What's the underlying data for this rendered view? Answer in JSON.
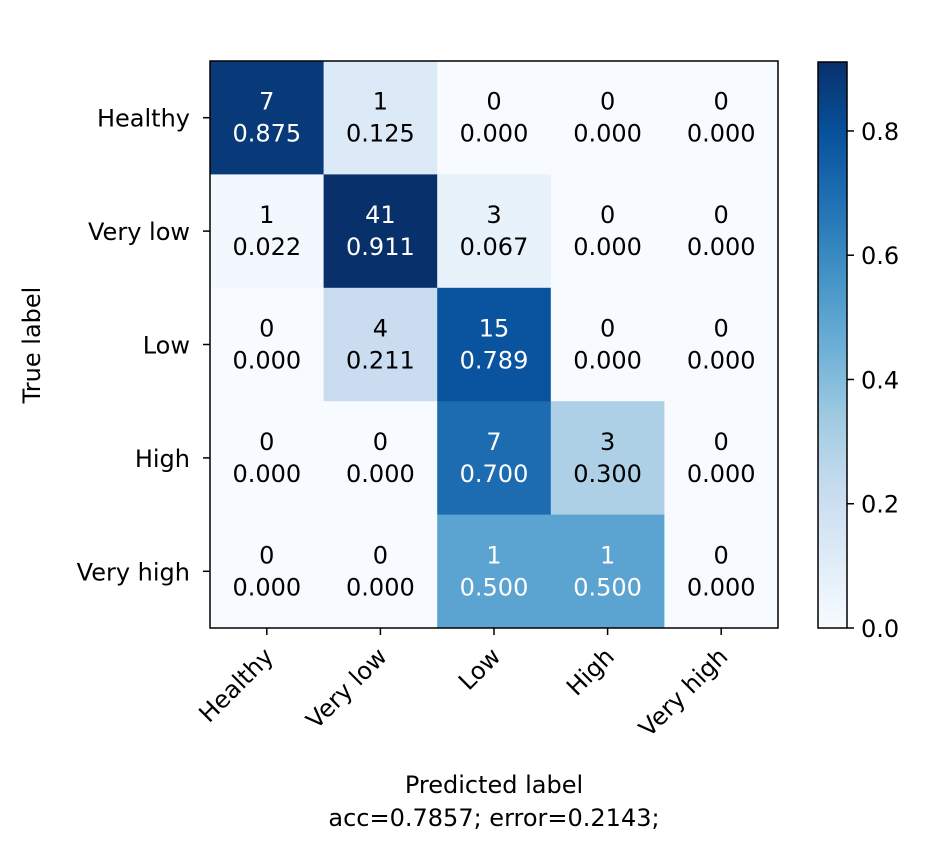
{
  "chart_data": {
    "type": "heatmap",
    "colormap": "Blues",
    "x_categories": [
      "Healthy",
      "Very low",
      "Low",
      "High",
      "Very high"
    ],
    "y_categories": [
      "Healthy",
      "Very low",
      "Low",
      "High",
      "Very high"
    ],
    "counts": [
      [
        7,
        1,
        0,
        0,
        0
      ],
      [
        1,
        41,
        3,
        0,
        0
      ],
      [
        0,
        4,
        15,
        0,
        0
      ],
      [
        0,
        0,
        7,
        3,
        0
      ],
      [
        0,
        0,
        1,
        1,
        0
      ]
    ],
    "values": [
      [
        "0.875",
        "0.125",
        "0.000",
        "0.000",
        "0.000"
      ],
      [
        "0.022",
        "0.911",
        "0.067",
        "0.000",
        "0.000"
      ],
      [
        "0.000",
        "0.211",
        "0.789",
        "0.000",
        "0.000"
      ],
      [
        "0.000",
        "0.000",
        "0.700",
        "0.300",
        "0.000"
      ],
      [
        "0.000",
        "0.000",
        "0.500",
        "0.500",
        "0.000"
      ]
    ],
    "xlabel": "Predicted label",
    "xlabel_line2": "acc=0.7857; error=0.2143;",
    "ylabel": "True label",
    "colorbar": {
      "min": 0.0,
      "max": 0.911,
      "ticks": [
        "0.0",
        "0.2",
        "0.4",
        "0.6",
        "0.8"
      ]
    },
    "text_threshold": 0.4555,
    "grid": false
  }
}
